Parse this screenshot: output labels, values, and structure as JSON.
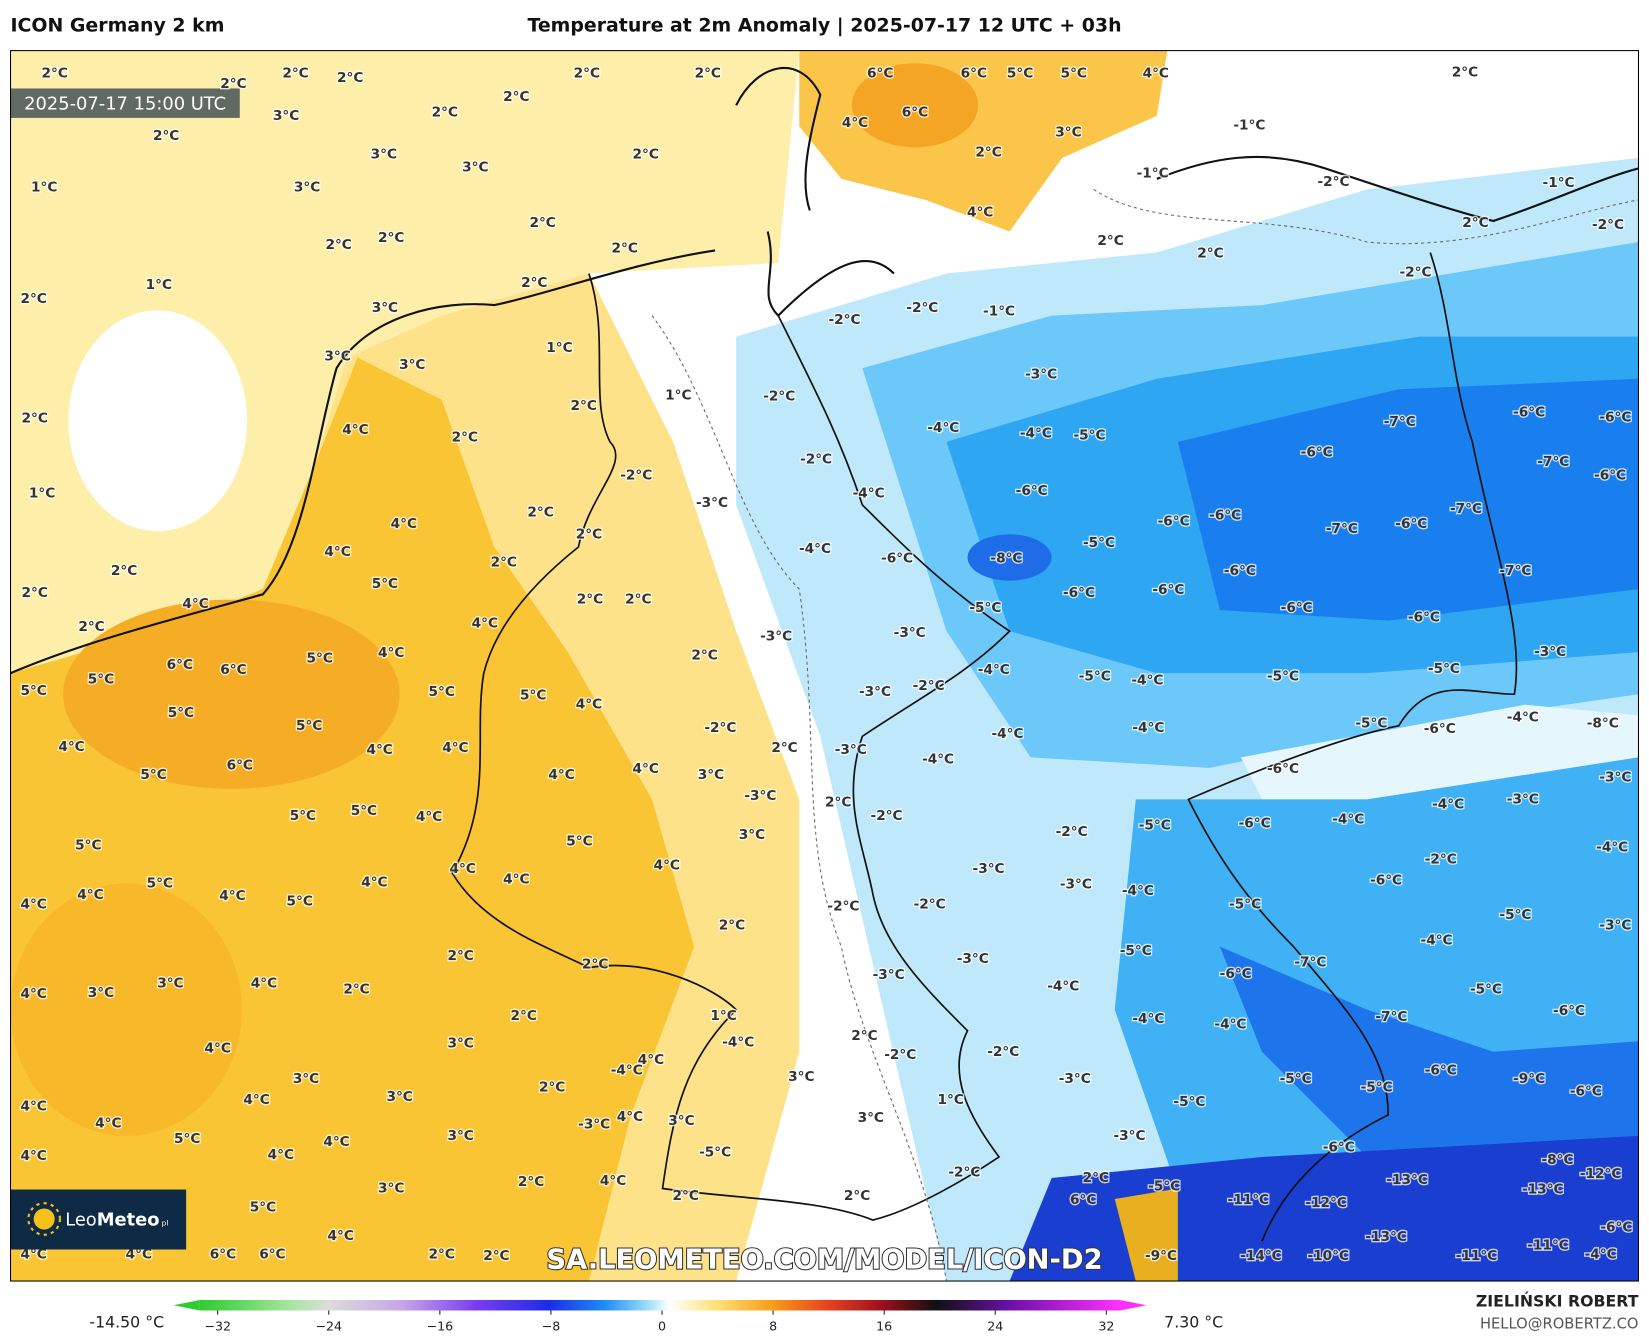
{
  "header": {
    "model": "ICON Germany 2 km",
    "title": "Temperature at 2m Anomaly | 2025-07-17 12 UTC + 03h"
  },
  "map": {
    "valid_time": "2025-07-17 15:00 UTC",
    "watermark": "SA.LEOMETEO.COM/MODEL/ICON-D2",
    "labels": [
      "2°C",
      "2°C",
      "2°C",
      "2°C",
      "3°C",
      "2°C",
      "3°C",
      "3°C",
      "1°C",
      "2°C",
      "2°C",
      "2°C",
      "2°C",
      "2°C",
      "3°C",
      "2°C",
      "2°C",
      "2°C",
      "1°C",
      "2°C",
      "2°C",
      "1°C",
      "2°C",
      "2°C",
      "2°C",
      "6°C",
      "6°C",
      "5°C",
      "5°C",
      "4°C",
      "6°C",
      "4°C",
      "3°C",
      "2°C",
      "4°C",
      "2°C",
      "2°C",
      "2°C",
      "-1°C",
      "-1°C",
      "-2°C",
      "-1°C",
      "2°C",
      "-2°C",
      "-2°C",
      "2°C",
      "2°C",
      "3°C",
      "3°C",
      "3°C",
      "1°C",
      "2°C",
      "2°C",
      "4°C",
      "1°C",
      "-2°C",
      "-2°C",
      "-2°C",
      "-1°C",
      "-3°C",
      "-4°C",
      "-4°C",
      "-5°C",
      "-7°C",
      "-6°C",
      "-6°C",
      "-7°C",
      "-6°C",
      "-6°C",
      "-2°C",
      "-2°C",
      "-4°C",
      "-6°C",
      "-3°C",
      "2°C",
      "4°C",
      "4°C",
      "2°C",
      "-6°C",
      "-6°C",
      "-7°C",
      "-6°C",
      "-7°C",
      "-4°C",
      "-6°C",
      "-8°C",
      "-5°C",
      "-7°C",
      "2°C",
      "5°C",
      "-6°C",
      "-6°C",
      "-6°C",
      "-6°C",
      "-6°C",
      "2°C",
      "2°C",
      "4°C",
      "4°C",
      "-5°C",
      "-3°C",
      "-3°C",
      "5°C",
      "4°C",
      "6°C",
      "6°C",
      "5°C",
      "5°C",
      "2°C",
      "-3°C",
      "-5°C",
      "-4°C",
      "-5°C",
      "-4°C",
      "-5°C",
      "-3°C",
      "-2°C",
      "5°C",
      "5°C",
      "4°C",
      "5°C",
      "5°C",
      "-2°C",
      "-5°C",
      "-6°C",
      "-4°C",
      "-8°C",
      "-4°C",
      "-4°C",
      "4°C",
      "4°C",
      "4°C",
      "2°C",
      "-3°C",
      "-4°C",
      "6°C",
      "5°C",
      "4°C",
      "4°C",
      "3°C",
      "-6°C",
      "-3°C",
      "-3°C",
      "2°C",
      "-2°C",
      "-4°C",
      "-4°C",
      "-3°C",
      "5°C",
      "5°C",
      "4°C",
      "-5°C",
      "-6°C",
      "3°C",
      "-2°C",
      "5°C",
      "5°C",
      "-4°C",
      "-2°C",
      "4°C",
      "-3°C",
      "4°C",
      "4°C",
      "4°C",
      "5°C",
      "-3°C",
      "-4°C",
      "-6°C",
      "4°C",
      "4°C",
      "5°C",
      "4°C",
      "-2°C",
      "-2°C",
      "-5°C",
      "-5°C",
      "2°C",
      "-3°C",
      "-4°C",
      "-5°C",
      "2°C",
      "-3°C",
      "-7°C",
      "2°C",
      "-3°C",
      "-6°C",
      "4°C",
      "3°C",
      "3°C",
      "4°C",
      "2°C",
      "-4°C",
      "-5°C",
      "-6°C",
      "2°C",
      "1°C",
      "-4°C",
      "-4°C",
      "-7°C",
      "-4°C",
      "4°C",
      "3°C",
      "2°C",
      "-2°C",
      "-2°C",
      "4°C",
      "-6°C",
      "-9°C",
      "-6°C",
      "3°C",
      "-4°C",
      "3°C",
      "-3°C",
      "-5°C",
      "-5°C",
      "2°C",
      "3°C",
      "4°C",
      "4°C",
      "1°C",
      "-5°C",
      "4°C",
      "4°C",
      "-3°C",
      "3°C",
      "3°C",
      "5°C",
      "3°C",
      "4°C",
      "-3°C",
      "-5°C",
      "-6°C",
      "-8°C",
      "4°C",
      "4°C",
      "-2°C",
      "-12°C",
      "-13°C",
      "2°C",
      "-5°C",
      "-13°C",
      "3°C",
      "2°C",
      "4°C",
      "2°C",
      "6°C",
      "-11°C",
      "-12°C",
      "2°C",
      "5°C",
      "4°C",
      "-13°C",
      "-11°C",
      "-6°C",
      "4°C",
      "4°C",
      "6°C",
      "6°C",
      "2°C",
      "2°C",
      "-9°C",
      "-14°C",
      "-10°C",
      "-11°C",
      "-4°C"
    ]
  },
  "logo": {
    "name": "Leo",
    "name_bold": "Meteo",
    "suffix": "pl"
  },
  "colorbar": {
    "min_label": "-14.50 °C",
    "max_label": "7.30 °C",
    "ticks": [
      "−32",
      "−24",
      "−16",
      "−8",
      "0",
      "8",
      "16",
      "24",
      "32"
    ]
  },
  "footer": {
    "author": "ZIELIŃSKI ROBERT",
    "contact": "HELLO@ROBERTZ.CO"
  }
}
